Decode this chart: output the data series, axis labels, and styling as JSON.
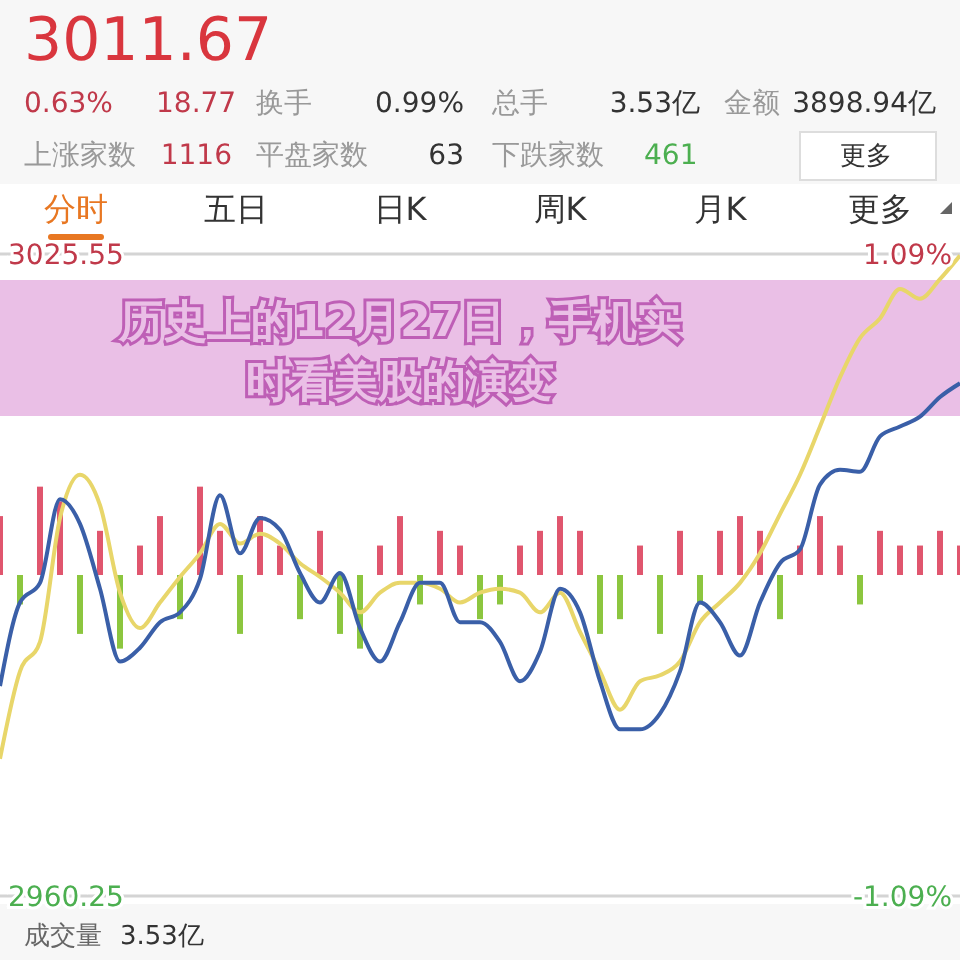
{
  "chart_data": {
    "type": "line",
    "title": "历史上的12月27日，手机实时看美股的演变",
    "annotations": [
      "3011.67",
      "0.63%",
      "18.77",
      "换手",
      "0.99%",
      "总手",
      "3.53亿",
      "金额",
      "3898.94亿",
      "上涨家数",
      "1116",
      "平盘家数",
      "63",
      "下跌家数",
      "461",
      "更多",
      "分时",
      "五日",
      "日K",
      "周K",
      "月K",
      "更多",
      "成交量",
      "3.53亿"
    ],
    "categories": [
      null,
      null,
      null,
      null,
      null,
      null,
      null,
      null,
      null,
      null,
      null,
      null,
      null,
      null,
      null,
      null,
      null,
      null,
      null,
      null,
      null,
      null,
      null,
      null,
      null,
      null,
      null,
      null,
      null,
      null,
      null,
      null,
      null,
      null,
      null,
      null,
      null,
      null,
      null,
      null,
      null,
      null,
      null,
      null,
      null,
      null,
      null,
      null,
      null
    ],
    "series": [
      {
        "type": "bar",
        "axis": "y2",
        "colors": [
          "#e0566e",
          "#8cc63f",
          "#e0566e",
          "#e0566e",
          "#8cc63f",
          "#e0566e",
          "#8cc63f",
          "#e0566e",
          "#e0566e",
          "#8cc63f",
          "#e0566e",
          "#e0566e",
          "#8cc63f",
          "#e0566e",
          "#e0566e",
          "#8cc63f",
          "#e0566e",
          "#8cc63f",
          "#8cc63f",
          "#e0566e",
          "#e0566e",
          "#8cc63f",
          "#e0566e",
          "#e0566e",
          "#8cc63f",
          "#8cc63f",
          "#e0566e",
          "#e0566e",
          "#e0566e",
          "#e0566e",
          "#8cc63f",
          "#8cc63f",
          "#e0566e",
          "#8cc63f",
          "#e0566e",
          "#8cc63f",
          "#e0566e",
          "#e0566e",
          "#e0566e",
          "#8cc63f",
          "#e0566e",
          "#e0566e",
          "#e0566e",
          "#8cc63f",
          "#e0566e",
          "#e0566e",
          "#e0566e",
          "#e0566e",
          "#e0566e"
        ],
        "values": [
          0.2,
          -0.1,
          0.3,
          0.25,
          -0.2,
          0.15,
          -0.25,
          0.1,
          0.2,
          -0.15,
          0.3,
          0.15,
          -0.2,
          0.2,
          0.1,
          -0.15,
          0.15,
          -0.2,
          -0.25,
          0.1,
          0.2,
          -0.1,
          0.15,
          0.1,
          -0.15,
          -0.1,
          0.1,
          0.15,
          0.2,
          0.15,
          -0.2,
          -0.15,
          0.1,
          -0.2,
          0.15,
          -0.1,
          0.15,
          0.2,
          0.15,
          -0.15,
          0.1,
          0.2,
          0.1,
          -0.1,
          0.15,
          0.1,
          0.1,
          0.15,
          0.1
        ]
      },
      {
        "color": "#e8d66a",
        "values": [
          2974.2,
          2983.1,
          2986.1,
          2998.7,
          3003.1,
          3000.0,
          2991.1,
          2987.5,
          2990.1,
          2992.7,
          2995.1,
          2998.1,
          2996.1,
          2997.1,
          2996.1,
          2994.1,
          2992.7,
          2991.1,
          2989.1,
          2991.1,
          2992.1,
          2992.1,
          2991.5,
          2990.1,
          2991.1,
          2991.5,
          2991.1,
          2989.1,
          2991.1,
          2987.1,
          2983.1,
          2979.2,
          2982.1,
          2982.7,
          2984.1,
          2988.1,
          2990.1,
          2992.1,
          2995.1,
          2999.1,
          3003.1,
          3008.0,
          3013.0,
          3017.0,
          3019.0,
          3022.0,
          3021.0,
          3023.0,
          3025.4
        ]
      },
      {
        "color": "#3a5fa8",
        "values": [
          2981.6,
          2990.1,
          2992.1,
          3000.6,
          2998.1,
          2991.5,
          2984.1,
          2985.5,
          2988.1,
          2989.1,
          2992.5,
          3001.0,
          2995.1,
          2998.7,
          2997.5,
          2993.1,
          2990.1,
          2993.1,
          2987.5,
          2984.1,
          2988.1,
          2992.1,
          2992.1,
          2988.1,
          2988.1,
          2986.1,
          2982.1,
          2985.1,
          2991.5,
          2989.1,
          2982.1,
          2977.2,
          2977.2,
          2978.8,
          2983.1,
          2990.1,
          2988.1,
          2984.7,
          2990.1,
          2994.1,
          2995.5,
          3002.1,
          3003.6,
          3003.4,
          3007.0,
          3008.0,
          3009.0,
          3011.0,
          3012.4
        ]
      }
    ],
    "ylim": [
      2960.25,
      3025.55
    ],
    "yticks": [
      3025.55,
      2960.25
    ],
    "y2lim": [
      -1.09,
      1.09
    ],
    "y2ticks": [
      {
        "value": 1.09,
        "label": "1.09%"
      },
      {
        "value": -1.09,
        "label": "-1.09%"
      }
    ],
    "marker": "none",
    "line_style": "solid"
  }
}
